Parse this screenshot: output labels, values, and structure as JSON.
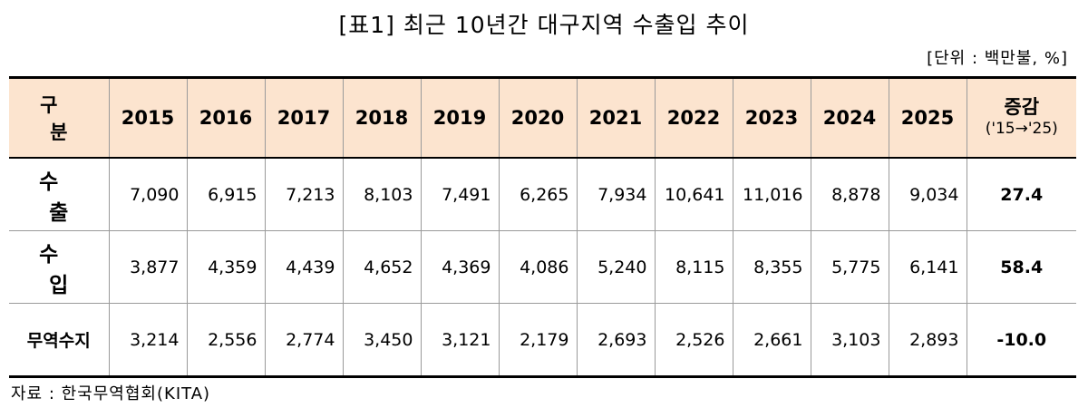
{
  "title": "[표1] 최근 10년간 대구지역 수출입 추이",
  "unit": "[단위 : 백만불, %]",
  "header": {
    "category": "구 분",
    "years": [
      "2015",
      "2016",
      "2017",
      "2018",
      "2019",
      "2020",
      "2021",
      "2022",
      "2023",
      "2024",
      "2025"
    ],
    "change_label": "증감",
    "change_sub": "('15→'25)"
  },
  "rows": [
    {
      "label": "수 출",
      "values": [
        "7,090",
        "6,915",
        "7,213",
        "8,103",
        "7,491",
        "6,265",
        "7,934",
        "10,641",
        "11,016",
        "8,878",
        "9,034"
      ],
      "change": "27.4"
    },
    {
      "label": "수 입",
      "values": [
        "3,877",
        "4,359",
        "4,439",
        "4,652",
        "4,369",
        "4,086",
        "5,240",
        "8,115",
        "8,355",
        "5,775",
        "6,141"
      ],
      "change": "58.4"
    },
    {
      "label": "무역수지",
      "values": [
        "3,214",
        "2,556",
        "2,774",
        "3,450",
        "3,121",
        "2,179",
        "2,693",
        "2,526",
        "2,661",
        "3,103",
        "2,893"
      ],
      "change": "-10.0"
    }
  ],
  "source": "자료 : 한국무역협회(KITA)",
  "colors": {
    "header_bg": "#fce4cf"
  }
}
